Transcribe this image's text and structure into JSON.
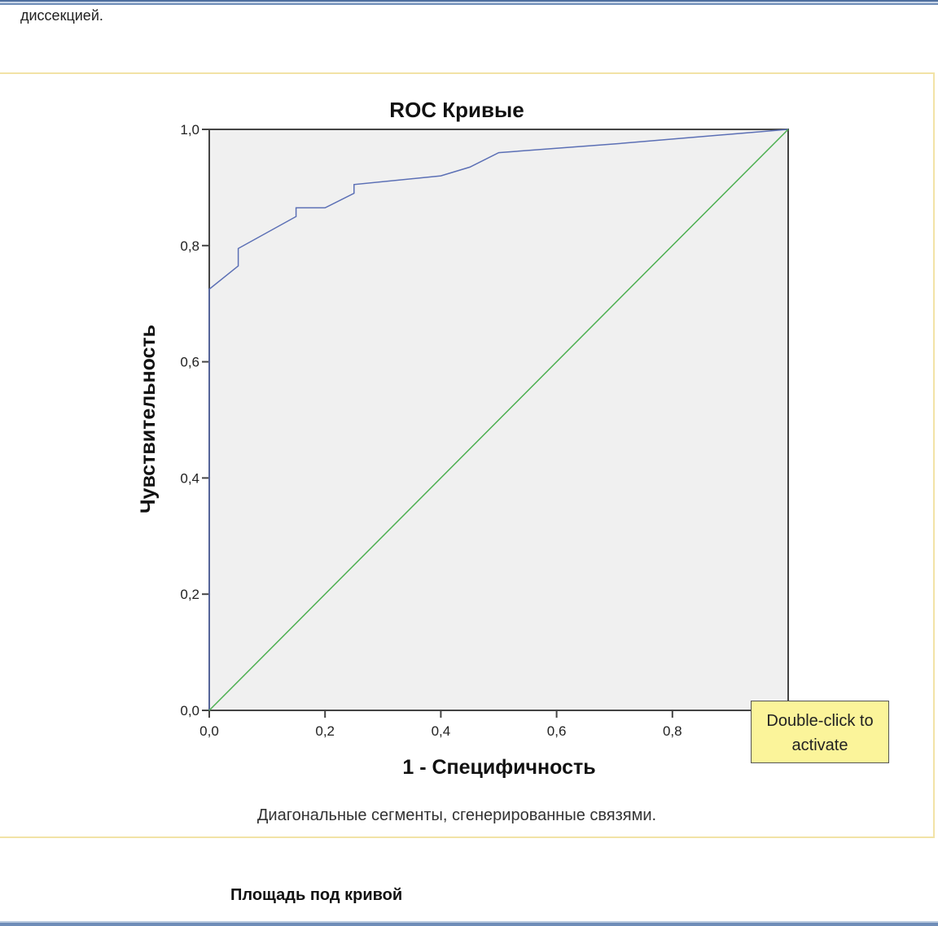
{
  "intro": {
    "text": "диссекцией."
  },
  "tooltip": {
    "line1": "Double-click to",
    "line2": "activate"
  },
  "area_table": {
    "heading": "Площадь под кривой"
  },
  "footnote": "Диагональные сегменты, сгенерированные связями.",
  "colors": {
    "roc_curve": "#5b6fb5",
    "reference_line": "#4caf50",
    "plot_background": "#f0f0f0"
  },
  "chart_data": {
    "type": "line",
    "title": "ROC Кривые",
    "xlabel": "1 - Специфичность",
    "ylabel": "Чувствительность",
    "xlim": [
      0,
      1
    ],
    "ylim": [
      0,
      1
    ],
    "x_ticks": [
      "0,0",
      "0,2",
      "0,4",
      "0,6",
      "0,8"
    ],
    "y_ticks": [
      "0,0",
      "0,2",
      "0,4",
      "0,6",
      "0,8",
      "1,0"
    ],
    "grid": false,
    "series": [
      {
        "x": [
          0,
          0,
          0.05,
          0.05,
          0.15,
          0.15,
          0.2,
          0.25,
          0.25,
          0.4,
          0.45,
          0.5,
          0.7,
          1.0
        ],
        "y": [
          0,
          0.725,
          0.765,
          0.795,
          0.85,
          0.865,
          0.865,
          0.89,
          0.905,
          0.92,
          0.935,
          0.96,
          0.975,
          1.0
        ]
      },
      {
        "x": [
          0,
          1
        ],
        "y": [
          0,
          1
        ]
      }
    ]
  }
}
